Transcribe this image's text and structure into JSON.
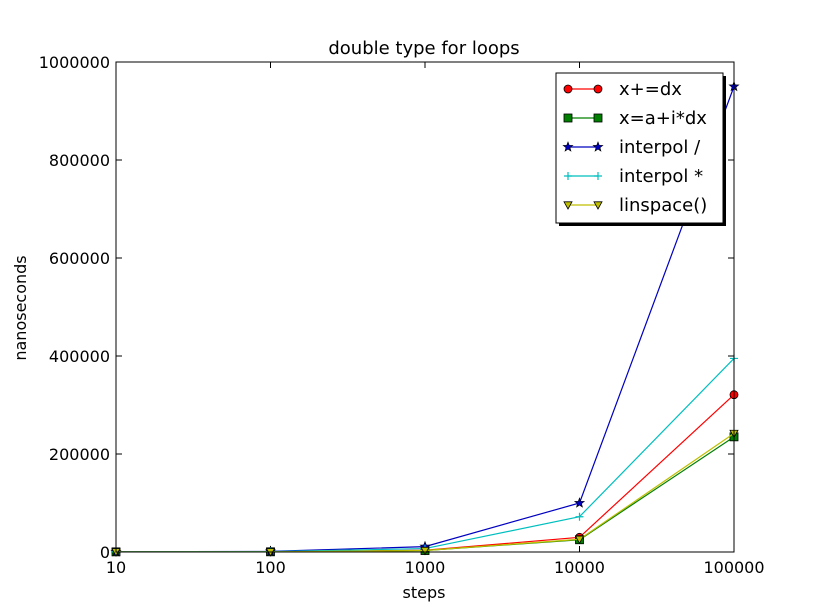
{
  "chart_data": {
    "type": "line",
    "title": "double type for loops",
    "xlabel": "steps",
    "ylabel": "nanoseconds",
    "xscale": "log",
    "x": [
      10,
      100,
      1000,
      10000,
      100000
    ],
    "xlim": [
      10,
      100000
    ],
    "ylim": [
      0,
      1000000
    ],
    "xticks": [
      "10",
      "100",
      "1000",
      "10000",
      "100000"
    ],
    "yticks": [
      "0",
      "200000",
      "400000",
      "600000",
      "800000",
      "1000000"
    ],
    "legend_position": "top-right",
    "grid": false,
    "series": [
      {
        "name": "x+=dx",
        "color": "#ff0000",
        "marker": "circle",
        "values": [
          300,
          400,
          3500,
          30000,
          321000
        ]
      },
      {
        "name": "x=a+i*dx",
        "color": "#008000",
        "marker": "square",
        "values": [
          300,
          400,
          3000,
          25000,
          235000
        ]
      },
      {
        "name": "interpol /",
        "color": "#0000bf",
        "marker": "star",
        "values": [
          500,
          1200,
          11000,
          100000,
          950000
        ]
      },
      {
        "name": "interpol *",
        "color": "#00bfbf",
        "marker": "plus",
        "values": [
          400,
          800,
          7000,
          72000,
          395000
        ]
      },
      {
        "name": "linspace()",
        "color": "#bfbf00",
        "marker": "triangle-down",
        "values": [
          300,
          400,
          3000,
          26000,
          242000
        ]
      }
    ]
  }
}
